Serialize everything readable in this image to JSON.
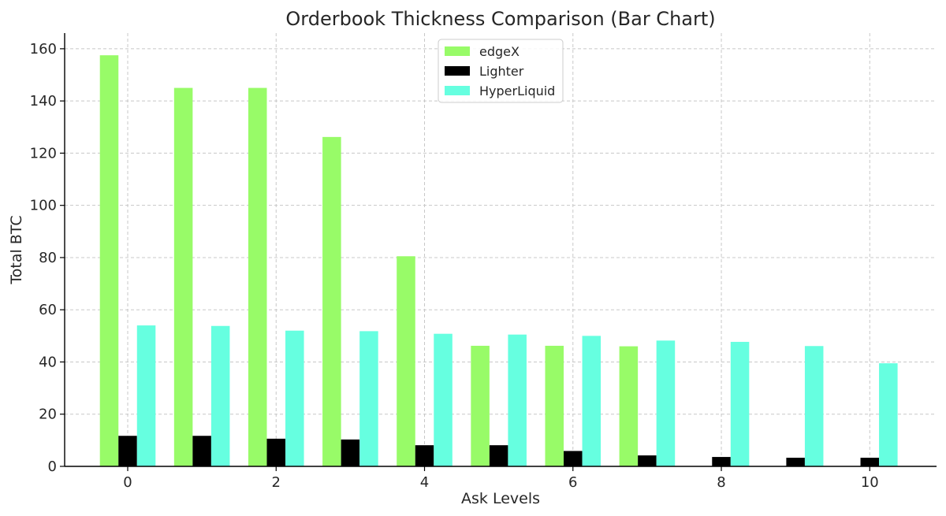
{
  "chart_data": {
    "type": "bar",
    "title": "Orderbook Thickness Comparison (Bar Chart)",
    "xlabel": "Ask Levels",
    "ylabel": "Total BTC",
    "categories": [
      0,
      1,
      2,
      3,
      4,
      5,
      6,
      7,
      8,
      9,
      10
    ],
    "x_ticks": [
      0,
      2,
      4,
      6,
      8,
      10
    ],
    "y_ticks": [
      0,
      20,
      40,
      60,
      80,
      100,
      120,
      140,
      160
    ],
    "ylim": [
      0,
      166
    ],
    "xlim": [
      -0.85,
      10.9
    ],
    "grid": true,
    "legend_position": "top-center",
    "series": [
      {
        "name": "edgeX",
        "color": "#98fb68",
        "values": [
          157.5,
          145,
          145,
          126.2,
          80.5,
          46.2,
          46.2,
          46,
          0,
          0,
          0
        ]
      },
      {
        "name": "Lighter",
        "color": "#000000",
        "values": [
          11.7,
          11.7,
          10.6,
          10.3,
          8.1,
          8.1,
          5.9,
          4.2,
          3.6,
          3.3,
          3.3
        ]
      },
      {
        "name": "HyperLiquid",
        "color": "#66ffe0",
        "values": [
          54,
          53.8,
          52,
          51.8,
          50.8,
          50.5,
          50,
          48.2,
          47.7,
          46.1,
          39.5
        ]
      }
    ]
  }
}
